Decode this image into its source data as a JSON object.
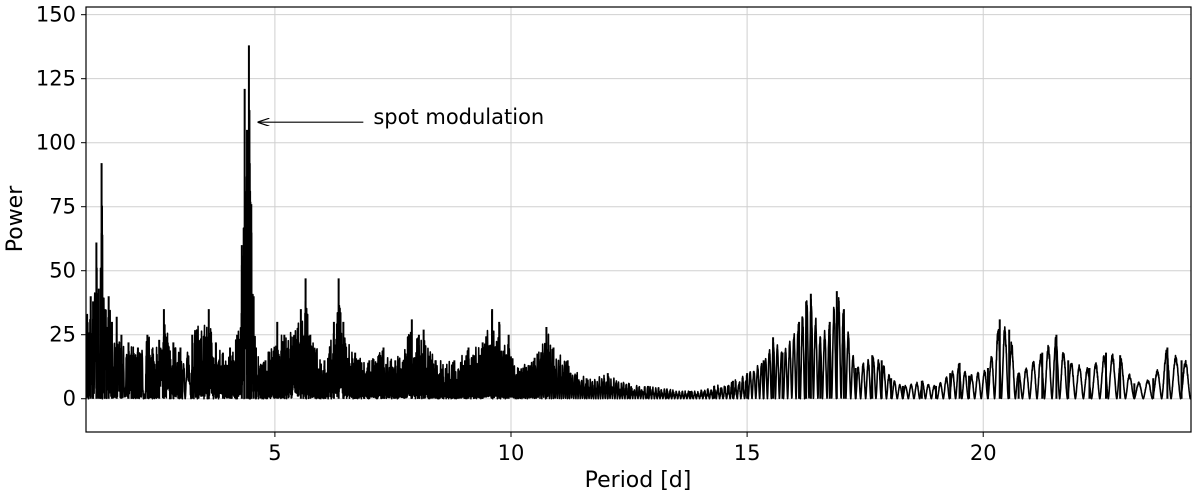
{
  "chart_data": {
    "type": "line",
    "xlabel": "Period [d]",
    "ylabel": "Power",
    "xlim": [
      1.0,
      24.4
    ],
    "ylim": [
      -13,
      153
    ],
    "xticks": [
      5,
      10,
      15,
      20
    ],
    "yticks": [
      0,
      25,
      50,
      75,
      100,
      125,
      150
    ],
    "grid": true,
    "series": [
      {
        "color": "#000000",
        "peaks": [
          {
            "x": 1.1,
            "y": 40
          },
          {
            "x": 1.15,
            "y": 38
          },
          {
            "x": 1.22,
            "y": 61
          },
          {
            "x": 1.27,
            "y": 43
          },
          {
            "x": 1.33,
            "y": 92
          },
          {
            "x": 1.4,
            "y": 35
          },
          {
            "x": 1.48,
            "y": 40
          },
          {
            "x": 1.55,
            "y": 30
          },
          {
            "x": 1.65,
            "y": 32
          },
          {
            "x": 1.75,
            "y": 25
          },
          {
            "x": 1.9,
            "y": 22
          },
          {
            "x": 2.1,
            "y": 20
          },
          {
            "x": 2.3,
            "y": 25
          },
          {
            "x": 2.55,
            "y": 23
          },
          {
            "x": 2.65,
            "y": 35
          },
          {
            "x": 2.85,
            "y": 22
          },
          {
            "x": 3.0,
            "y": 20
          },
          {
            "x": 3.25,
            "y": 25
          },
          {
            "x": 3.6,
            "y": 35
          },
          {
            "x": 3.75,
            "y": 22
          },
          {
            "x": 3.9,
            "y": 18
          },
          {
            "x": 4.05,
            "y": 20
          },
          {
            "x": 4.2,
            "y": 25
          },
          {
            "x": 4.3,
            "y": 60
          },
          {
            "x": 4.36,
            "y": 121
          },
          {
            "x": 4.41,
            "y": 105
          },
          {
            "x": 4.45,
            "y": 138
          },
          {
            "x": 4.5,
            "y": 76
          },
          {
            "x": 4.55,
            "y": 40
          },
          {
            "x": 4.6,
            "y": 20
          },
          {
            "x": 4.8,
            "y": 15
          },
          {
            "x": 5.05,
            "y": 30
          },
          {
            "x": 5.2,
            "y": 25
          },
          {
            "x": 5.55,
            "y": 35
          },
          {
            "x": 5.65,
            "y": 47
          },
          {
            "x": 5.75,
            "y": 25
          },
          {
            "x": 6.05,
            "y": 15
          },
          {
            "x": 6.25,
            "y": 30
          },
          {
            "x": 6.35,
            "y": 47
          },
          {
            "x": 6.45,
            "y": 30
          },
          {
            "x": 6.7,
            "y": 18
          },
          {
            "x": 7.0,
            "y": 15
          },
          {
            "x": 7.3,
            "y": 20
          },
          {
            "x": 7.55,
            "y": 15
          },
          {
            "x": 7.9,
            "y": 31
          },
          {
            "x": 8.05,
            "y": 25
          },
          {
            "x": 8.15,
            "y": 27
          },
          {
            "x": 8.4,
            "y": 15
          },
          {
            "x": 8.8,
            "y": 15
          },
          {
            "x": 9.1,
            "y": 20
          },
          {
            "x": 9.4,
            "y": 22
          },
          {
            "x": 9.6,
            "y": 35
          },
          {
            "x": 9.75,
            "y": 30
          },
          {
            "x": 9.95,
            "y": 25
          },
          {
            "x": 10.15,
            "y": 12
          },
          {
            "x": 10.5,
            "y": 16
          },
          {
            "x": 10.75,
            "y": 28
          },
          {
            "x": 10.9,
            "y": 20
          },
          {
            "x": 11.2,
            "y": 15
          },
          {
            "x": 11.6,
            "y": 8
          },
          {
            "x": 12.05,
            "y": 10
          },
          {
            "x": 12.5,
            "y": 6
          },
          {
            "x": 12.9,
            "y": 5
          },
          {
            "x": 13.3,
            "y": 4
          },
          {
            "x": 13.8,
            "y": 3
          },
          {
            "x": 14.3,
            "y": 5
          },
          {
            "x": 14.7,
            "y": 7
          },
          {
            "x": 15.0,
            "y": 10
          },
          {
            "x": 15.35,
            "y": 15
          },
          {
            "x": 15.55,
            "y": 24
          },
          {
            "x": 15.75,
            "y": 18
          },
          {
            "x": 16.1,
            "y": 30
          },
          {
            "x": 16.25,
            "y": 38
          },
          {
            "x": 16.35,
            "y": 41
          },
          {
            "x": 16.55,
            "y": 24
          },
          {
            "x": 16.75,
            "y": 30
          },
          {
            "x": 16.9,
            "y": 42
          },
          {
            "x": 17.05,
            "y": 35
          },
          {
            "x": 17.3,
            "y": 12
          },
          {
            "x": 17.65,
            "y": 17
          },
          {
            "x": 17.85,
            "y": 15
          },
          {
            "x": 18.05,
            "y": 8
          },
          {
            "x": 18.3,
            "y": 5
          },
          {
            "x": 18.7,
            "y": 7
          },
          {
            "x": 19.0,
            "y": 5
          },
          {
            "x": 19.3,
            "y": 10
          },
          {
            "x": 19.5,
            "y": 14
          },
          {
            "x": 19.7,
            "y": 9
          },
          {
            "x": 20.1,
            "y": 12
          },
          {
            "x": 20.35,
            "y": 31
          },
          {
            "x": 20.55,
            "y": 27
          },
          {
            "x": 20.75,
            "y": 10
          },
          {
            "x": 21.25,
            "y": 18
          },
          {
            "x": 21.55,
            "y": 25
          },
          {
            "x": 21.8,
            "y": 15
          },
          {
            "x": 22.25,
            "y": 12
          },
          {
            "x": 22.6,
            "y": 18
          },
          {
            "x": 22.9,
            "y": 17
          },
          {
            "x": 23.2,
            "y": 6
          },
          {
            "x": 23.6,
            "y": 8
          },
          {
            "x": 23.9,
            "y": 20
          },
          {
            "x": 24.2,
            "y": 15
          }
        ]
      }
    ],
    "annotations": [
      {
        "text": "spot modulation",
        "point": [
          4.65,
          108
        ],
        "text_pos": [
          7.0,
          110
        ]
      }
    ]
  }
}
